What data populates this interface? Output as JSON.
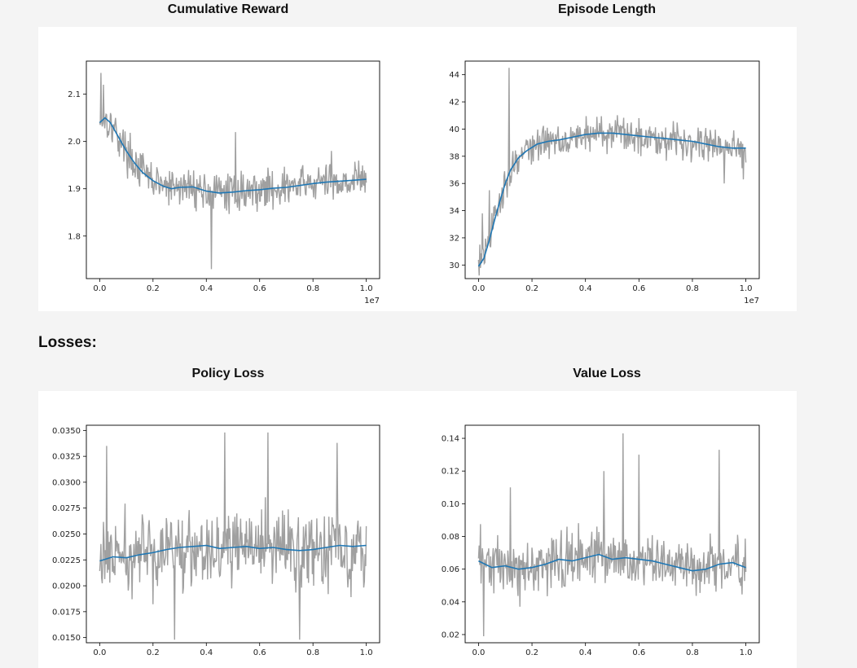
{
  "titles": {
    "reward": "Cumulative Reward",
    "length": "Episode Length",
    "policy": "Policy Loss",
    "value": "Value Loss"
  },
  "section": {
    "losses": "Losses:"
  },
  "colors": {
    "raw": "#a0a0a0",
    "smooth": "#1f77b4",
    "panel": "#ffffff",
    "background": "#f4f4f4"
  },
  "chart_data": [
    {
      "id": "reward",
      "type": "line",
      "title": "Cumulative Reward",
      "xlim": [
        -0.05,
        1.05
      ],
      "ylim": [
        1.71,
        2.17
      ],
      "xticks": [
        0.0,
        0.2,
        0.4,
        0.6,
        0.8,
        1.0
      ],
      "xtick_labels": [
        "0.0",
        "0.2",
        "0.4",
        "0.6",
        "0.8",
        "1.0"
      ],
      "yticks": [
        1.8,
        1.9,
        2.0,
        2.1
      ],
      "ytick_labels": [
        "1.8",
        "1.9",
        "2.0",
        "2.1"
      ],
      "x_offset_label": "1e7",
      "smoothed": {
        "x": [
          0.0,
          0.01,
          0.02,
          0.04,
          0.06,
          0.08,
          0.1,
          0.13,
          0.16,
          0.2,
          0.24,
          0.27,
          0.3,
          0.35,
          0.4,
          0.45,
          0.5,
          0.55,
          0.6,
          0.65,
          0.7,
          0.75,
          0.8,
          0.85,
          0.9,
          0.95,
          1.0
        ],
        "y": [
          2.04,
          2.045,
          2.05,
          2.04,
          2.02,
          2.0,
          1.98,
          1.955,
          1.935,
          1.917,
          1.905,
          1.9,
          1.903,
          1.904,
          1.895,
          1.891,
          1.893,
          1.896,
          1.898,
          1.901,
          1.903,
          1.907,
          1.911,
          1.914,
          1.916,
          1.918,
          1.92
        ]
      },
      "raw_noise": {
        "amplitude": 0.06,
        "spikes": [
          [
            0.005,
            2.145
          ],
          [
            0.015,
            2.12
          ],
          [
            0.04,
            2.06
          ],
          [
            0.42,
            1.73
          ],
          [
            0.51,
            2.02
          ],
          [
            0.87,
            1.98
          ]
        ]
      }
    },
    {
      "id": "length",
      "type": "line",
      "title": "Episode Length",
      "xlim": [
        -0.05,
        1.05
      ],
      "ylim": [
        29.0,
        45.0
      ],
      "xticks": [
        0.0,
        0.2,
        0.4,
        0.6,
        0.8,
        1.0
      ],
      "xtick_labels": [
        "0.0",
        "0.2",
        "0.4",
        "0.6",
        "0.8",
        "1.0"
      ],
      "yticks": [
        30,
        32,
        34,
        36,
        38,
        40,
        42,
        44
      ],
      "ytick_labels": [
        "30",
        "32",
        "34",
        "36",
        "38",
        "40",
        "42",
        "44"
      ],
      "x_offset_label": "1e7",
      "smoothed": {
        "x": [
          0.0,
          0.02,
          0.04,
          0.06,
          0.08,
          0.1,
          0.12,
          0.15,
          0.18,
          0.22,
          0.26,
          0.3,
          0.35,
          0.4,
          0.45,
          0.5,
          0.55,
          0.6,
          0.65,
          0.7,
          0.75,
          0.8,
          0.85,
          0.9,
          0.95,
          1.0
        ],
        "y": [
          29.9,
          30.5,
          31.8,
          33.3,
          34.7,
          36.0,
          37.0,
          37.9,
          38.4,
          38.9,
          39.1,
          39.2,
          39.4,
          39.6,
          39.7,
          39.7,
          39.6,
          39.5,
          39.4,
          39.3,
          39.2,
          39.1,
          38.9,
          38.7,
          38.6,
          38.6
        ]
      },
      "raw_noise": {
        "amplitude": 1.9,
        "spikes": [
          [
            0.115,
            44.5
          ],
          [
            0.005,
            31.5
          ],
          [
            0.015,
            33.8
          ],
          [
            0.04,
            35.5
          ],
          [
            0.92,
            36.0
          ],
          [
            0.99,
            36.3
          ]
        ]
      }
    },
    {
      "id": "policy",
      "type": "line",
      "title": "Policy Loss",
      "xlim": [
        -0.05,
        1.05
      ],
      "ylim": [
        0.0145,
        0.0355
      ],
      "xticks": [
        0.0,
        0.2,
        0.4,
        0.6,
        0.8,
        1.0
      ],
      "xtick_labels": [
        "0.0",
        "0.2",
        "0.4",
        "0.6",
        "0.8",
        "1.0"
      ],
      "yticks": [
        0.015,
        0.0175,
        0.02,
        0.0225,
        0.025,
        0.0275,
        0.03,
        0.0325,
        0.035
      ],
      "ytick_labels": [
        "0.0150",
        "0.0175",
        "0.0200",
        "0.0225",
        "0.0250",
        "0.0275",
        "0.0300",
        "0.0325",
        "0.0350"
      ],
      "x_offset_label": "",
      "smoothed": {
        "x": [
          0.0,
          0.05,
          0.1,
          0.15,
          0.2,
          0.25,
          0.3,
          0.35,
          0.4,
          0.45,
          0.5,
          0.55,
          0.6,
          0.65,
          0.7,
          0.75,
          0.8,
          0.85,
          0.9,
          0.95,
          1.0
        ],
        "y": [
          0.0224,
          0.0228,
          0.0227,
          0.023,
          0.0232,
          0.0235,
          0.0237,
          0.0238,
          0.0239,
          0.0236,
          0.0237,
          0.0238,
          0.0236,
          0.0237,
          0.0235,
          0.0234,
          0.0235,
          0.0237,
          0.0239,
          0.0238,
          0.0239
        ]
      },
      "raw_noise": {
        "amplitude": 0.0055,
        "spikes": [
          [
            0.025,
            0.0335
          ],
          [
            0.28,
            0.0148
          ],
          [
            0.47,
            0.0348
          ],
          [
            0.63,
            0.0348
          ],
          [
            0.75,
            0.0148
          ],
          [
            0.89,
            0.0338
          ]
        ]
      }
    },
    {
      "id": "value",
      "type": "line",
      "title": "Value Loss",
      "xlim": [
        -0.05,
        1.05
      ],
      "ylim": [
        0.015,
        0.148
      ],
      "xticks": [
        0.0,
        0.2,
        0.4,
        0.6,
        0.8,
        1.0
      ],
      "xtick_labels": [
        "0.0",
        "0.2",
        "0.4",
        "0.6",
        "0.8",
        "1.0"
      ],
      "yticks": [
        0.02,
        0.04,
        0.06,
        0.08,
        0.1,
        0.12,
        0.14
      ],
      "ytick_labels": [
        "0.02",
        "0.04",
        "0.06",
        "0.08",
        "0.10",
        "0.12",
        "0.14"
      ],
      "x_offset_label": "",
      "smoothed": {
        "x": [
          0.0,
          0.05,
          0.1,
          0.15,
          0.2,
          0.25,
          0.3,
          0.35,
          0.4,
          0.45,
          0.5,
          0.55,
          0.6,
          0.65,
          0.7,
          0.75,
          0.8,
          0.85,
          0.9,
          0.95,
          1.0
        ],
        "y": [
          0.065,
          0.061,
          0.062,
          0.06,
          0.061,
          0.063,
          0.066,
          0.065,
          0.067,
          0.069,
          0.066,
          0.067,
          0.066,
          0.065,
          0.063,
          0.061,
          0.059,
          0.06,
          0.063,
          0.064,
          0.061
        ]
      },
      "raw_noise": {
        "amplitude": 0.026,
        "spikes": [
          [
            0.02,
            0.019
          ],
          [
            0.54,
            0.143
          ],
          [
            0.6,
            0.13
          ],
          [
            0.9,
            0.133
          ],
          [
            0.12,
            0.11
          ],
          [
            0.47,
            0.12
          ]
        ]
      }
    }
  ]
}
